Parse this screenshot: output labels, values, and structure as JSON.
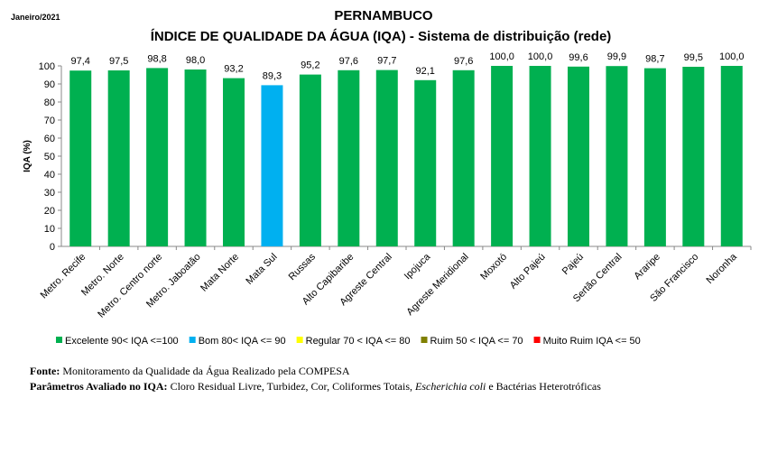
{
  "chart_data": {
    "type": "bar",
    "date_label": "Janeiro/2021",
    "title": "PERNAMBUCO",
    "subtitle": "ÍNDICE DE QUALIDADE DA ÁGUA (IQA) - Sistema de distribuição (rede)",
    "ylabel": "IQA (%)",
    "ylim": [
      0,
      100
    ],
    "yticks": [
      0,
      10,
      20,
      30,
      40,
      50,
      60,
      70,
      80,
      90,
      100
    ],
    "categories": [
      "Metro. Recife",
      "Metro. Norte",
      "Metro. Centro norte",
      "Metro. Jaboatão",
      "Mata Norte",
      "Mata Sul",
      "Russas",
      "Alto Capibaribe",
      "Agreste Central",
      "Ipojuca",
      "Agreste Meridional",
      "Moxotó",
      "Alto Pajeú",
      "Pajeú",
      "Sertão Central",
      "Araripe",
      "São Francisco",
      "Noronha"
    ],
    "values": [
      97.4,
      97.5,
      98.8,
      98.0,
      93.2,
      89.3,
      95.2,
      97.6,
      97.7,
      92.1,
      97.6,
      100.0,
      100.0,
      99.6,
      99.9,
      98.7,
      99.5,
      100.0
    ],
    "value_labels": [
      "97,4",
      "97,5",
      "98,8",
      "98,0",
      "93,2",
      "89,3",
      "95,2",
      "97,6",
      "97,7",
      "92,1",
      "97,6",
      "100,0",
      "100,0",
      "99,6",
      "99,9",
      "98,7",
      "99,5",
      "100,0"
    ],
    "legend_position": "bottom",
    "legend": [
      {
        "label": "Excelente  90< IQA <=100",
        "color": "#00b050"
      },
      {
        "label": "Bom 80< IQA <= 90",
        "color": "#00b0f0"
      },
      {
        "label": "Regular 70 < IQA <= 80",
        "color": "#ffff00"
      },
      {
        "label": "Ruim 50 < IQA <= 70",
        "color": "#808000"
      },
      {
        "label": "Muito Ruim IQA <= 50",
        "color": "#ff0000"
      }
    ]
  },
  "footer": {
    "source_label": "Fonte:",
    "source_text": "Monitoramento da Qualidade da Água Realizado pela COMPESA",
    "params_label": "Parâmetros Avaliado no IQA:",
    "params_text": "Cloro Residual Livre, Turbidez, Cor, Coliformes Totais,",
    "params_italic": "Escherichia coli",
    "params_text2": "e Bactérias Heterotróficas"
  }
}
